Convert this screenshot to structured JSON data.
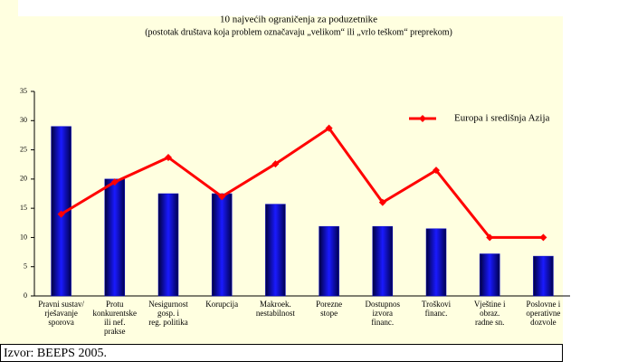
{
  "chart_data": {
    "type": "bar",
    "title": "10 najvećih ograničenja za poduzetnike",
    "subtitle": "(postotak društava koja problem označavaju „velikom“ ili „vrlo teškom“ preprekom)",
    "categories": [
      [
        "Pravni sustav/",
        "rješavanje",
        "sporova"
      ],
      [
        "Protu",
        "konkurentske",
        "ili nef.",
        "prakse"
      ],
      [
        "Nesigurnost",
        "gosp. i",
        "reg. politika"
      ],
      [
        "Korupcija"
      ],
      [
        "Makroek.",
        "nestabilnost"
      ],
      [
        "Porezne",
        "stope"
      ],
      [
        "Dostupnos",
        "izvora",
        "financ."
      ],
      [
        "Troškovi",
        "financ."
      ],
      [
        "Vještine i",
        "obraz.",
        "radne sn."
      ],
      [
        "Poslovne i",
        "operativne",
        "dozvole"
      ]
    ],
    "values": [
      29,
      20,
      17.5,
      17.5,
      15.7,
      11.9,
      11.9,
      11.5,
      7.2,
      6.8
    ],
    "color": "#0000cc",
    "series": [
      {
        "name": "Europa i središnja Azija",
        "color": "#ff0000",
        "type": "line",
        "values": [
          14,
          19.5,
          23.7,
          17,
          22.6,
          28.7,
          16,
          21.5,
          10,
          10
        ]
      }
    ],
    "ylim": [
      0,
      35
    ],
    "yticks": [
      0,
      5,
      10,
      15,
      20,
      25,
      30,
      35
    ],
    "legend": "right",
    "source": "Izvor: BEEPS 2005."
  }
}
